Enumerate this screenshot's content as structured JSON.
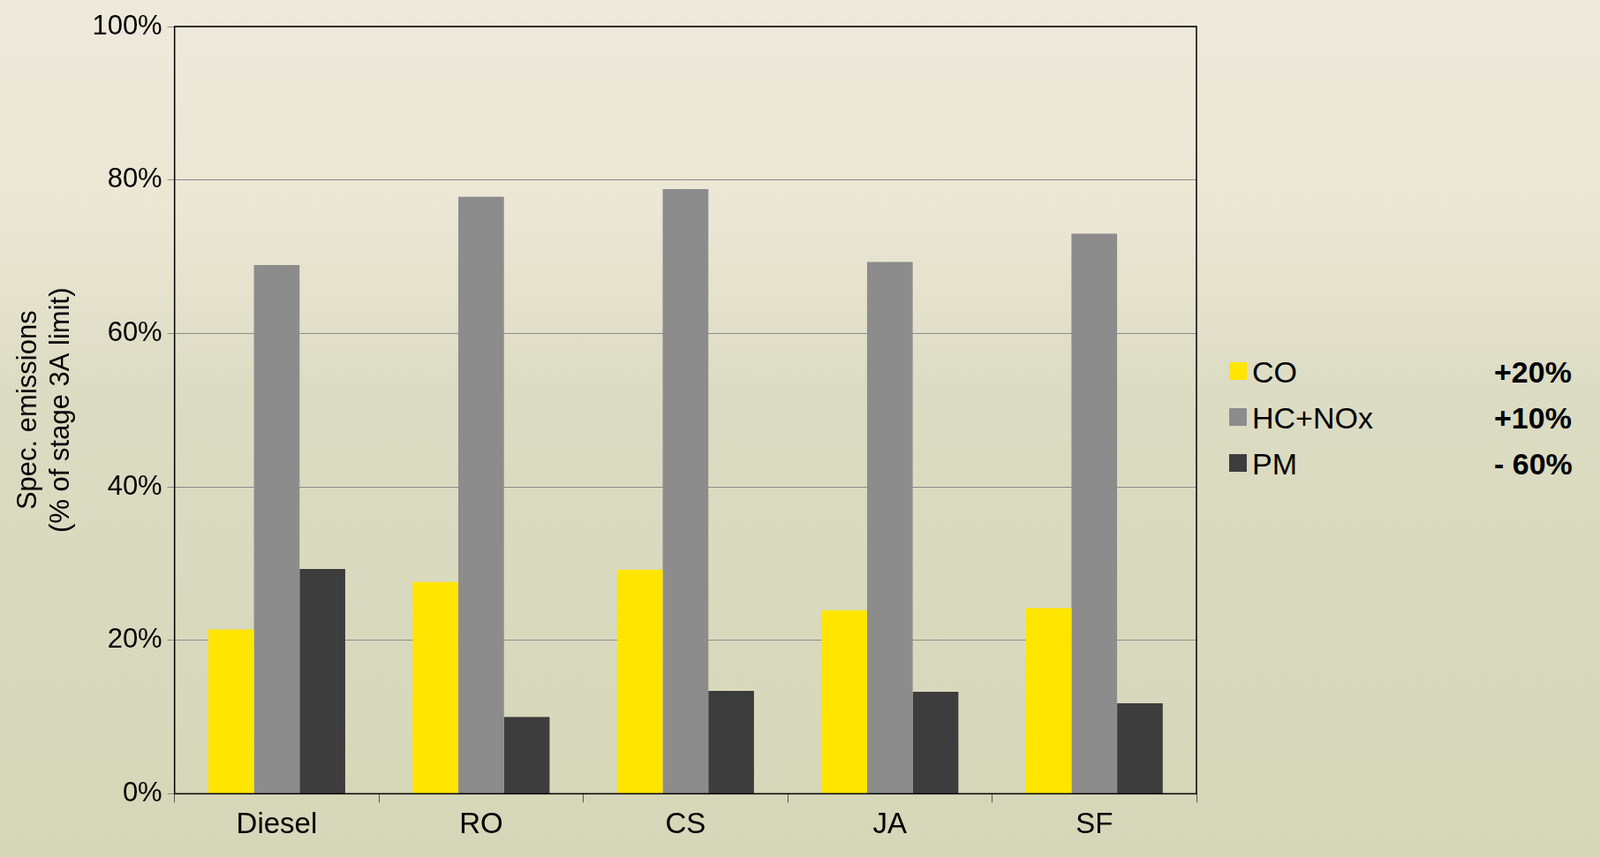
{
  "chart_data": {
    "type": "bar",
    "y_label": "Spec. emissions (% of stage 3A limit)",
    "categories": [
      "Diesel",
      "RO",
      "CS",
      "JA",
      "SF"
    ],
    "series": [
      {
        "name": "CO",
        "color": "#ffe500",
        "values": [
          21.4,
          27.6,
          29.2,
          23.9,
          24.2
        ]
      },
      {
        "name": "HC+NOx",
        "color": "#8c8c8c",
        "values": [
          68.9,
          77.8,
          78.8,
          69.3,
          73.0
        ]
      },
      {
        "name": "PM",
        "color": "#3d3d3d",
        "values": [
          29.3,
          10.0,
          13.4,
          13.3,
          11.8
        ]
      }
    ],
    "annotations": [
      {
        "series": "CO",
        "text": "+20%"
      },
      {
        "series": "HC+NOx",
        "text": "+10%"
      },
      {
        "series": "PM",
        "text": "- 60%"
      }
    ],
    "ylim": [
      0,
      100
    ],
    "yticks": [
      {
        "value": 0,
        "label": "0%"
      },
      {
        "value": 20,
        "label": "20%"
      },
      {
        "value": 40,
        "label": "40%"
      },
      {
        "value": 60,
        "label": "60%"
      },
      {
        "value": 80,
        "label": "80%"
      },
      {
        "value": 100,
        "label": "100%"
      }
    ],
    "grid": true,
    "legend": "right"
  }
}
